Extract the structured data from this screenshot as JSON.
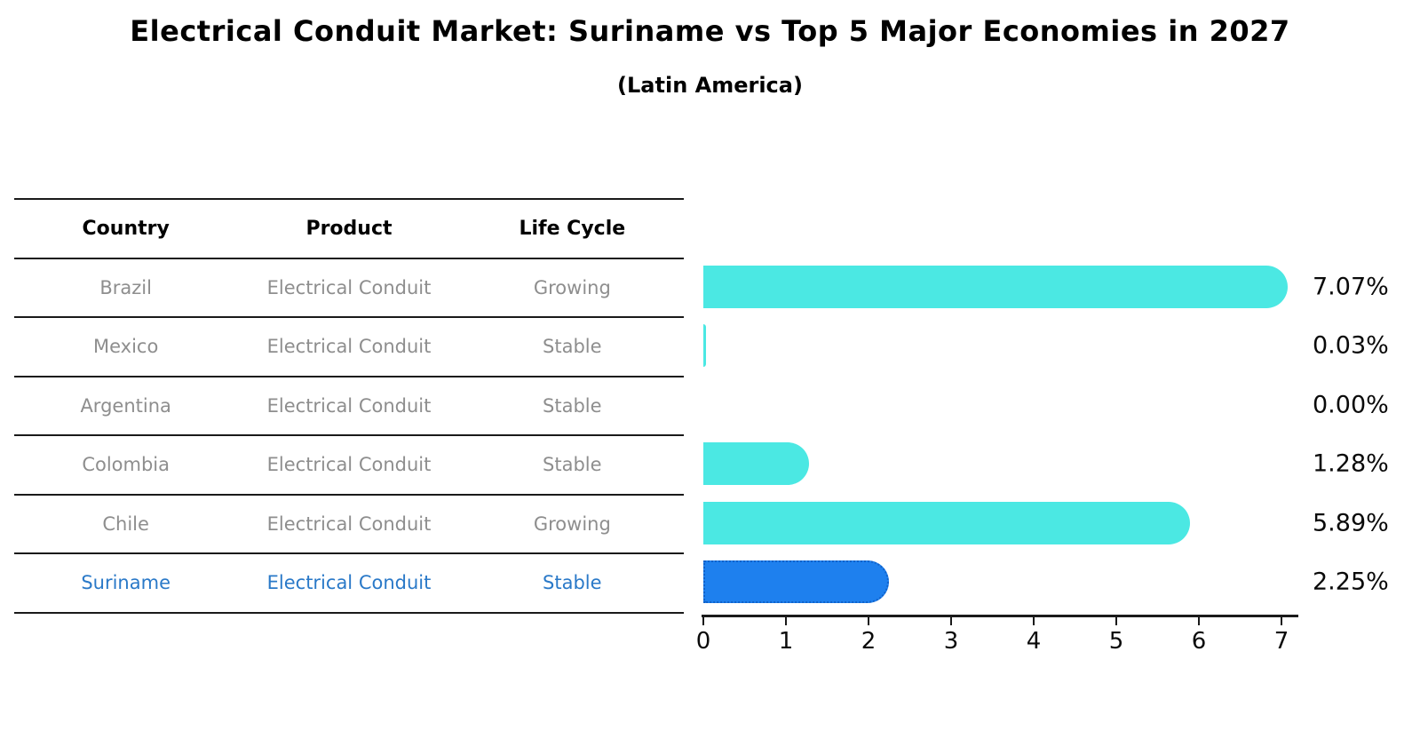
{
  "title": "Electrical Conduit Market: Suriname vs Top 5 Major Economies in 2027",
  "subtitle": "(Latin America)",
  "table": {
    "headers": [
      "Country",
      "Product",
      "Life Cycle"
    ],
    "rows": [
      {
        "country": "Brazil",
        "product": "Electrical Conduit",
        "life_cycle": "Growing",
        "highlight": false
      },
      {
        "country": "Mexico",
        "product": "Electrical Conduit",
        "life_cycle": "Stable",
        "highlight": false
      },
      {
        "country": "Argentina",
        "product": "Electrical Conduit",
        "life_cycle": "Stable",
        "highlight": false
      },
      {
        "country": "Colombia",
        "product": "Electrical Conduit",
        "life_cycle": "Stable",
        "highlight": false
      },
      {
        "country": "Chile",
        "product": "Electrical Conduit",
        "life_cycle": "Growing",
        "highlight": false
      },
      {
        "country": "Suriname",
        "product": "Electrical Conduit",
        "life_cycle": "Stable",
        "highlight": true
      }
    ]
  },
  "chart_data": {
    "type": "bar",
    "orientation": "horizontal",
    "title": "Electrical Conduit Market: Suriname vs Top 5 Major Economies in 2027 (Latin America)",
    "categories": [
      "Brazil",
      "Mexico",
      "Argentina",
      "Colombia",
      "Chile",
      "Suriname"
    ],
    "values": [
      7.07,
      0.03,
      0.0,
      1.28,
      5.89,
      2.25
    ],
    "value_labels": [
      "7.07%",
      "0.03%",
      "0.00%",
      "1.28%",
      "5.89%",
      "2.25%"
    ],
    "highlight_index": 5,
    "xlabel": "",
    "ylabel": "",
    "xlim": [
      0,
      7.2
    ],
    "x_ticks": [
      0,
      1,
      2,
      3,
      4,
      5,
      6,
      7
    ],
    "grid": false,
    "legend": false
  },
  "colors": {
    "background": "#ffffff",
    "bar_default": "#4be8e3",
    "bar_highlight": "#1e80ee",
    "bar_highlight_border": "#1061c9",
    "highlight_text": "#2a79c8",
    "row_text": "#8e8e8e",
    "header_text": "#000000",
    "axis_line": "#1a1a1a",
    "value_text": "#0a0a0a"
  }
}
